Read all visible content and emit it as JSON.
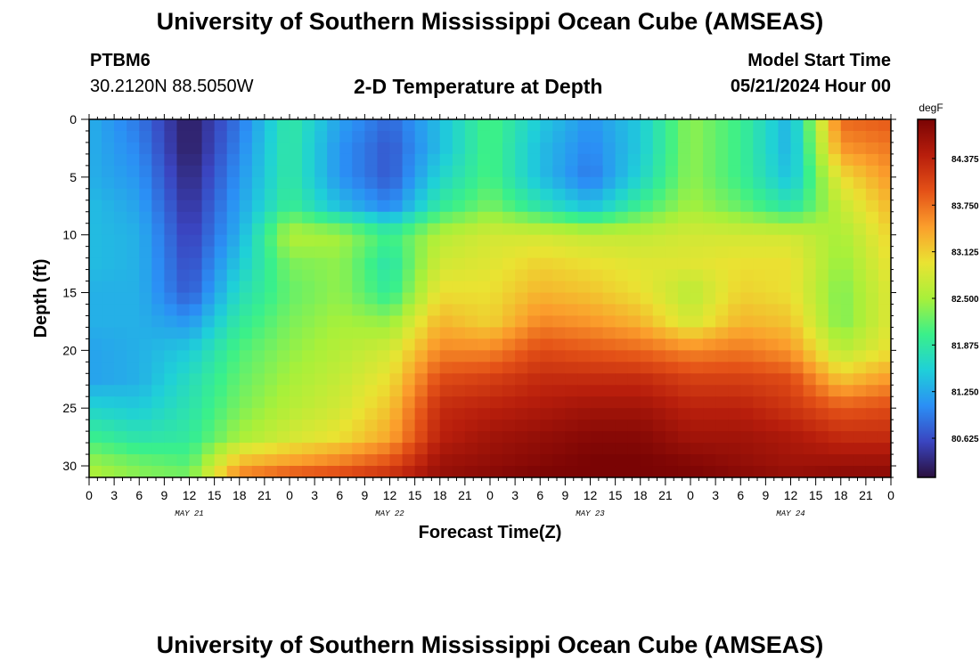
{
  "page": {
    "title": "University of Southern Mississippi Ocean Cube (AMSEAS)",
    "footer_title": "University of Southern Mississippi Ocean Cube (AMSEAS)",
    "station_id": "PTBM6",
    "station_coords": "30.2120N  88.5050W",
    "model_start_label": "Model Start Time",
    "model_start_value": "05/21/2024 Hour 00",
    "plot_title": "2-D Temperature at Depth"
  },
  "chart_data": {
    "type": "heatmap",
    "xlabel": "Forecast Time(Z)",
    "ylabel": "Depth (ft)",
    "xlim": [
      0,
      96
    ],
    "ylim": [
      31,
      0
    ],
    "x_tick_values": [
      0,
      3,
      6,
      9,
      12,
      15,
      18,
      21,
      24,
      27,
      30,
      33,
      36,
      39,
      42,
      45,
      48,
      51,
      54,
      57,
      60,
      63,
      66,
      69,
      72,
      75,
      78,
      81,
      84,
      87,
      90,
      93,
      96
    ],
    "x_tick_labels": [
      "0",
      "3",
      "6",
      "9",
      "12",
      "15",
      "18",
      "21",
      "0",
      "3",
      "6",
      "9",
      "12",
      "15",
      "18",
      "21",
      "0",
      "3",
      "6",
      "9",
      "12",
      "15",
      "18",
      "21",
      "0",
      "3",
      "6",
      "9",
      "12",
      "15",
      "18",
      "21",
      "0"
    ],
    "day_labels": [
      {
        "label": "MAY 21",
        "hour": 12
      },
      {
        "label": "MAY 22",
        "hour": 36
      },
      {
        "label": "MAY 23",
        "hour": 60
      },
      {
        "label": "MAY 24",
        "hour": 84
      }
    ],
    "y_ticks": [
      0,
      5,
      10,
      15,
      20,
      25,
      30
    ],
    "y_tick_labels": [
      "0",
      "5",
      "10",
      "15",
      "20",
      "25",
      "30"
    ],
    "colorbar": {
      "unit": "degF",
      "min": 80.1,
      "max": 84.9,
      "labels": [
        "84.375",
        "83.750",
        "83.125",
        "82.500",
        "81.875",
        "81.250",
        "80.625"
      ],
      "values": [
        84.375,
        83.75,
        83.125,
        82.5,
        81.875,
        81.25,
        80.625
      ],
      "colors": [
        "#2a0f3d",
        "#3a45c0",
        "#2b8ff5",
        "#1fd0d8",
        "#3af08a",
        "#a8f03a",
        "#eae332",
        "#fb9e2c",
        "#e45117",
        "#b81e0c",
        "#7a0404"
      ]
    },
    "depths": [
      0,
      2.5,
      5,
      7.5,
      10,
      12.5,
      15,
      17.5,
      20,
      22.5,
      25,
      27.5,
      29.5,
      31
    ],
    "times": [
      0,
      6,
      12,
      18,
      24,
      30,
      36,
      42,
      48,
      54,
      60,
      66,
      72,
      78,
      84,
      90,
      96
    ],
    "values": [
      [
        81.3,
        80.9,
        80.2,
        80.9,
        81.9,
        81.2,
        80.8,
        81.4,
        82.1,
        81.5,
        81.1,
        81.5,
        82.4,
        82.0,
        81.3,
        83.8,
        83.9
      ],
      [
        81.3,
        81.0,
        80.2,
        81.0,
        81.9,
        81.1,
        80.7,
        81.4,
        82.1,
        81.4,
        81.0,
        81.5,
        82.4,
        82.0,
        81.3,
        83.5,
        83.7
      ],
      [
        81.3,
        81.1,
        80.3,
        81.1,
        81.9,
        81.1,
        80.7,
        81.6,
        82.1,
        81.4,
        80.9,
        81.6,
        82.4,
        82.0,
        81.4,
        83.0,
        83.5
      ],
      [
        81.4,
        81.2,
        80.4,
        81.2,
        82.0,
        81.4,
        81.0,
        81.9,
        82.3,
        81.8,
        81.4,
        82.0,
        82.5,
        82.2,
        81.8,
        82.7,
        83.3
      ],
      [
        81.4,
        81.3,
        80.5,
        81.3,
        82.6,
        82.5,
        82.0,
        82.6,
        82.8,
        82.8,
        82.7,
        82.7,
        82.8,
        82.8,
        82.8,
        82.5,
        83.1
      ],
      [
        81.4,
        81.3,
        80.6,
        81.5,
        82.3,
        82.4,
        81.8,
        82.8,
        82.9,
        83.1,
        83.0,
        82.9,
        82.9,
        83.0,
        83.0,
        82.4,
        83.0
      ],
      [
        81.3,
        81.3,
        80.7,
        81.7,
        82.2,
        82.4,
        81.9,
        83.0,
        83.0,
        83.3,
        83.2,
        83.0,
        82.6,
        83.1,
        83.0,
        82.3,
        82.9
      ],
      [
        81.3,
        81.3,
        81.1,
        81.9,
        82.3,
        82.5,
        82.4,
        83.3,
        83.1,
        83.6,
        83.5,
        83.3,
        82.8,
        83.3,
        83.2,
        82.3,
        82.9
      ],
      [
        81.2,
        81.3,
        81.5,
        82.1,
        82.4,
        82.6,
        82.8,
        83.6,
        83.6,
        84.0,
        83.9,
        83.8,
        83.6,
        83.7,
        83.5,
        82.6,
        83.0
      ],
      [
        81.2,
        81.3,
        81.7,
        82.2,
        82.5,
        82.7,
        83.0,
        84.0,
        84.1,
        84.3,
        84.3,
        84.3,
        84.1,
        84.1,
        84.0,
        83.2,
        83.5
      ],
      [
        81.6,
        81.5,
        81.8,
        82.3,
        82.6,
        82.8,
        83.2,
        84.3,
        84.4,
        84.5,
        84.6,
        84.6,
        84.4,
        84.4,
        84.2,
        83.9,
        84.0
      ],
      [
        82.0,
        81.8,
        81.9,
        82.5,
        82.8,
        83.0,
        83.4,
        84.4,
        84.6,
        84.7,
        84.8,
        84.8,
        84.6,
        84.6,
        84.5,
        84.3,
        84.3
      ],
      [
        82.4,
        82.2,
        82.1,
        83.2,
        83.4,
        83.6,
        83.9,
        84.6,
        84.7,
        84.8,
        84.9,
        84.9,
        84.8,
        84.7,
        84.6,
        84.6,
        84.6
      ],
      [
        82.6,
        82.4,
        82.3,
        83.7,
        84.0,
        84.1,
        84.3,
        84.7,
        84.8,
        84.9,
        84.9,
        84.9,
        84.9,
        84.8,
        84.7,
        84.8,
        84.8
      ]
    ]
  }
}
